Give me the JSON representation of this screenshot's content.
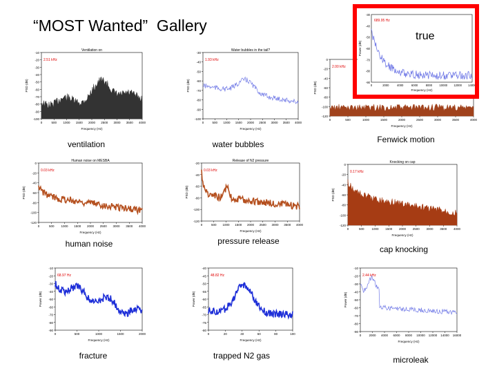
{
  "page": {
    "title": "“MOST Wanted”  Gallery",
    "highlight_label": "true"
  },
  "panels": [
    {
      "key": "ventilation",
      "caption": "ventilation",
      "plot_title": "Ventilation on",
      "annotation": "2.51 kHz",
      "color": "#333333",
      "style": "dense",
      "ylabel": "PSD (dB)",
      "xlabel": "Frequency (Hz)",
      "yticks": [
        "-10",
        "-20",
        "-30",
        "-40",
        "-50",
        "-60",
        "-70",
        "-80",
        "-90",
        "-100"
      ],
      "xticks": [
        "0",
        "500",
        "1000",
        "1500",
        "2000",
        "2500",
        "3000",
        "3500",
        "4000"
      ]
    },
    {
      "key": "water-bubbles",
      "caption": "water bubbles",
      "plot_title": "Water bubbles in the tail?",
      "annotation": "1.93 kHz",
      "color": "#6f78e6",
      "style": "line",
      "ylabel": "PSD (dB)",
      "xlabel": "Frequency (Hz)",
      "yticks": [
        "-30",
        "-40",
        "-50",
        "-60",
        "-70",
        "-80",
        "-90",
        "-100"
      ],
      "xticks": [
        "0",
        "500",
        "1000",
        "1500",
        "2000",
        "2500",
        "3000",
        "3500",
        "4000"
      ]
    },
    {
      "key": "fenwick-motion",
      "caption": "Fenwick motion",
      "plot_title": "",
      "annotation": "2.00 kHz",
      "color": "#a0421c",
      "style": "dense",
      "ylabel": "PSD (dB)",
      "xlabel": "Frequency (Hz)",
      "yticks": [
        "0",
        "-20",
        "-40",
        "-60",
        "-80",
        "-100",
        "-120"
      ],
      "xticks": [
        "0",
        "500",
        "1000",
        "1500",
        "2000",
        "2500",
        "3000",
        "3500",
        "4000"
      ]
    },
    {
      "key": "human-noise",
      "caption": "human noise",
      "plot_title": "Human noise on MESBA",
      "annotation": "0.03 kHz",
      "color": "#b5501f",
      "style": "dense",
      "ylabel": "PSD (dB)",
      "xlabel": "Frequency (Hz)",
      "yticks": [
        "0",
        "-20",
        "-40",
        "-60",
        "-80",
        "-100",
        "-120"
      ],
      "xticks": [
        "0",
        "500",
        "1000",
        "1500",
        "2000",
        "2500",
        "3000",
        "3500",
        "4000"
      ]
    },
    {
      "key": "pressure-release",
      "caption": "pressure release",
      "plot_title": "Release of N2 pressure",
      "annotation": "0.03 kHz",
      "color": "#b5501f",
      "style": "dense",
      "ylabel": "PSD (dB)",
      "xlabel": "Frequency (Hz)",
      "yticks": [
        "-20",
        "-40",
        "-60",
        "-80",
        "-100",
        "-120"
      ],
      "xticks": [
        "0",
        "500",
        "1000",
        "1500",
        "2000",
        "2500",
        "3000",
        "3500",
        "4000"
      ]
    },
    {
      "key": "cap-knocking",
      "caption": "cap knocking",
      "plot_title": "Knocking on cap",
      "annotation": "0.17 kHz",
      "color": "#a63c14",
      "style": "fill",
      "ylabel": "PSD (dB)",
      "xlabel": "Frequency (Hz)",
      "yticks": [
        "0",
        "-20",
        "-40",
        "-60",
        "-80",
        "-100",
        "-120"
      ],
      "xticks": [
        "0",
        "500",
        "1000",
        "1500",
        "2000",
        "2500",
        "3000",
        "3500",
        "4000"
      ]
    },
    {
      "key": "fracture",
      "caption": "fracture",
      "plot_title": "",
      "annotation": "68.97 Hz",
      "color": "#1e2fd8",
      "style": "band",
      "ylabel": "Power (dB)",
      "xlabel": "Frequency (Hz)",
      "yticks": [
        "-10",
        "-20",
        "-30",
        "-40",
        "-50",
        "-60",
        "-70",
        "-80",
        "-90"
      ],
      "xticks": [
        "0",
        "500",
        "1000",
        "1500",
        "2000"
      ]
    },
    {
      "key": "trapped-n2-gas",
      "caption": "trapped N2 gas",
      "plot_title": "",
      "annotation": "48.82 Hz",
      "color": "#1e2fd8",
      "style": "bandpeak",
      "ylabel": "Power (dB)",
      "xlabel": "Frequency (Hz)",
      "yticks": [
        "-40",
        "-45",
        "-50",
        "-55",
        "-60",
        "-65",
        "-70",
        "-75",
        "-80"
      ],
      "xticks": [
        "0",
        "20",
        "40",
        "60",
        "80",
        "100"
      ]
    },
    {
      "key": "microleak",
      "caption": "microleak",
      "plot_title": "",
      "annotation": "2.44 kHz",
      "color": "#6f78e6",
      "style": "line2",
      "ylabel": "Power (dB)",
      "xlabel": "Frequency (Hz)",
      "yticks": [
        "-10",
        "-20",
        "-30",
        "-40",
        "-50",
        "-60",
        "-70",
        "-80",
        "-90"
      ],
      "xticks": [
        "0",
        "2000",
        "4000",
        "6000",
        "8000",
        "10000",
        "12000",
        "14000",
        "16000"
      ]
    }
  ],
  "inset": {
    "annotation": "689.95 Hz",
    "color": "#6f78e6",
    "ylabel": "Power (dB)",
    "xlabel": "Frequency (Hz)",
    "yticks": [
      "-30",
      "-40",
      "-50",
      "-60",
      "-70",
      "-80",
      "-90"
    ],
    "xticks": [
      "0",
      "2000",
      "4000",
      "6000",
      "8000",
      "10000",
      "12000",
      "14000"
    ]
  }
}
